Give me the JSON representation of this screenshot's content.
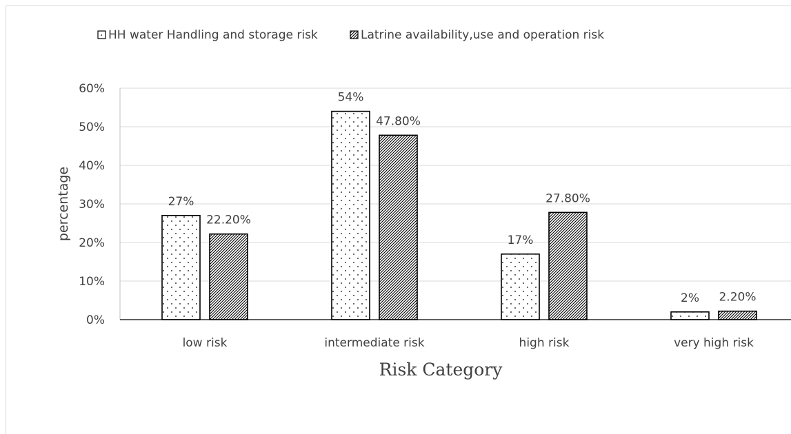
{
  "chart_data": {
    "type": "bar",
    "categories": [
      "low risk",
      "intermediate risk",
      "high risk",
      "very high risk"
    ],
    "series": [
      {
        "name": "HH water Handling and storage risk",
        "values": [
          27,
          54,
          17,
          2
        ],
        "labels": [
          "27%",
          "54%",
          "17%",
          "2%"
        ],
        "pattern": "dots"
      },
      {
        "name": "Latrine availability,use and operation risk",
        "values": [
          22.2,
          47.8,
          27.8,
          2.2
        ],
        "labels": [
          "22.20%",
          "47.80%",
          "27.80%",
          "2.20%"
        ],
        "pattern": "hatch"
      }
    ],
    "xlabel": "Risk Category",
    "ylabel": "percentage",
    "ylim": [
      0,
      60
    ],
    "yticks": [
      0,
      10,
      20,
      30,
      40,
      50,
      60
    ],
    "ytick_labels": [
      "0%",
      "10%",
      "20%",
      "30%",
      "40%",
      "50%",
      "60%"
    ],
    "grid": true,
    "legend": "top",
    "colors": {
      "bar_outline": "#000000",
      "grid": "#d9d9d9",
      "text": "#404040"
    }
  }
}
